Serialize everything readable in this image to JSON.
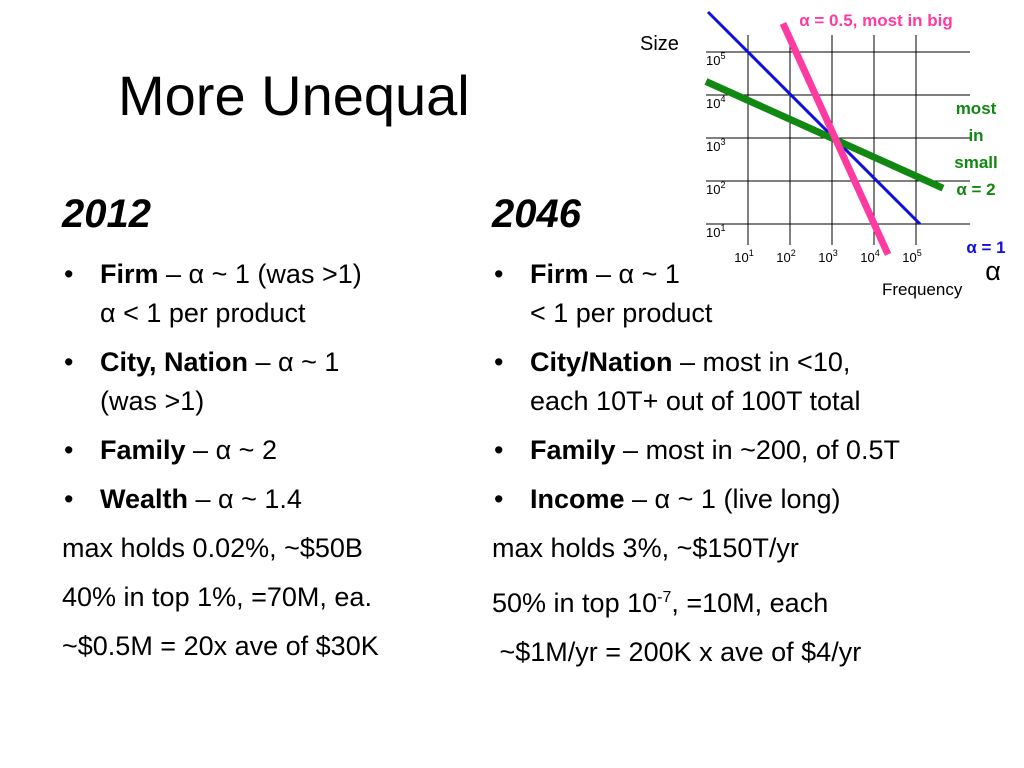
{
  "slide": {
    "title": "More Unequal"
  },
  "left": {
    "heading": "2012",
    "bullets": [
      {
        "term": "Firm",
        "rest": " – α ~ 1 (was >1)",
        "cont": "α < 1 per product"
      },
      {
        "term": "City, Nation",
        "rest": " – α ~ 1",
        "cont": "(was >1)"
      },
      {
        "term": "Family",
        "rest": " – α ~ 2",
        "cont": ""
      },
      {
        "term": "Wealth",
        "rest": " – α ~ 1.4",
        "cont": ""
      }
    ],
    "notes": [
      "max holds 0.02%, ~$50B",
      "40% in top 1%, =70M, ea.",
      "~$0.5M = 20x ave of $30K"
    ]
  },
  "right": {
    "heading": "2046",
    "bullets": [
      {
        "term": "Firm",
        "rest": " – α ~ 1",
        "cont": "< 1 per product"
      },
      {
        "term": "City/Nation",
        "rest": " – most in <10,",
        "cont": "each 10T+ out of 100T total"
      },
      {
        "term": "Family",
        "rest": " – most in ~200, of 0.5T",
        "cont": ""
      },
      {
        "term": "Income",
        "rest": " – α ~ 1 (live long)",
        "cont": ""
      }
    ],
    "notes": {
      "n1": "max holds 3%, ~$150T/yr",
      "n2_pre": "50% in top 10",
      "n2_exp": "-7",
      "n2_post": ", =10M, each",
      "n3": " ~$1M/yr = 200K x ave of $4/yr"
    },
    "alpha_symbol": "α"
  },
  "bullet_char": "•",
  "chart_data": {
    "type": "line",
    "scale": "log-log",
    "ylabel": "Size",
    "xlabel": "Frequency",
    "ticks": [
      {
        "base": "10",
        "exp": "1"
      },
      {
        "base": "10",
        "exp": "2"
      },
      {
        "base": "10",
        "exp": "3"
      },
      {
        "base": "10",
        "exp": "4"
      },
      {
        "base": "10",
        "exp": "5"
      }
    ],
    "grid": true,
    "series": [
      {
        "name": "α = 1",
        "slope": -1,
        "color": "#1010dd"
      },
      {
        "name": "α = 0.5, most in big",
        "slope": -2.2,
        "color": "#ff3aa0"
      },
      {
        "name": "most in small α = 2",
        "slope": -0.45,
        "color": "#118811"
      }
    ],
    "annotations": {
      "pink": "α = 0.5, most in big",
      "green_lines": [
        "most",
        "in",
        "small",
        "α = 2"
      ],
      "blue": "α = 1"
    }
  }
}
